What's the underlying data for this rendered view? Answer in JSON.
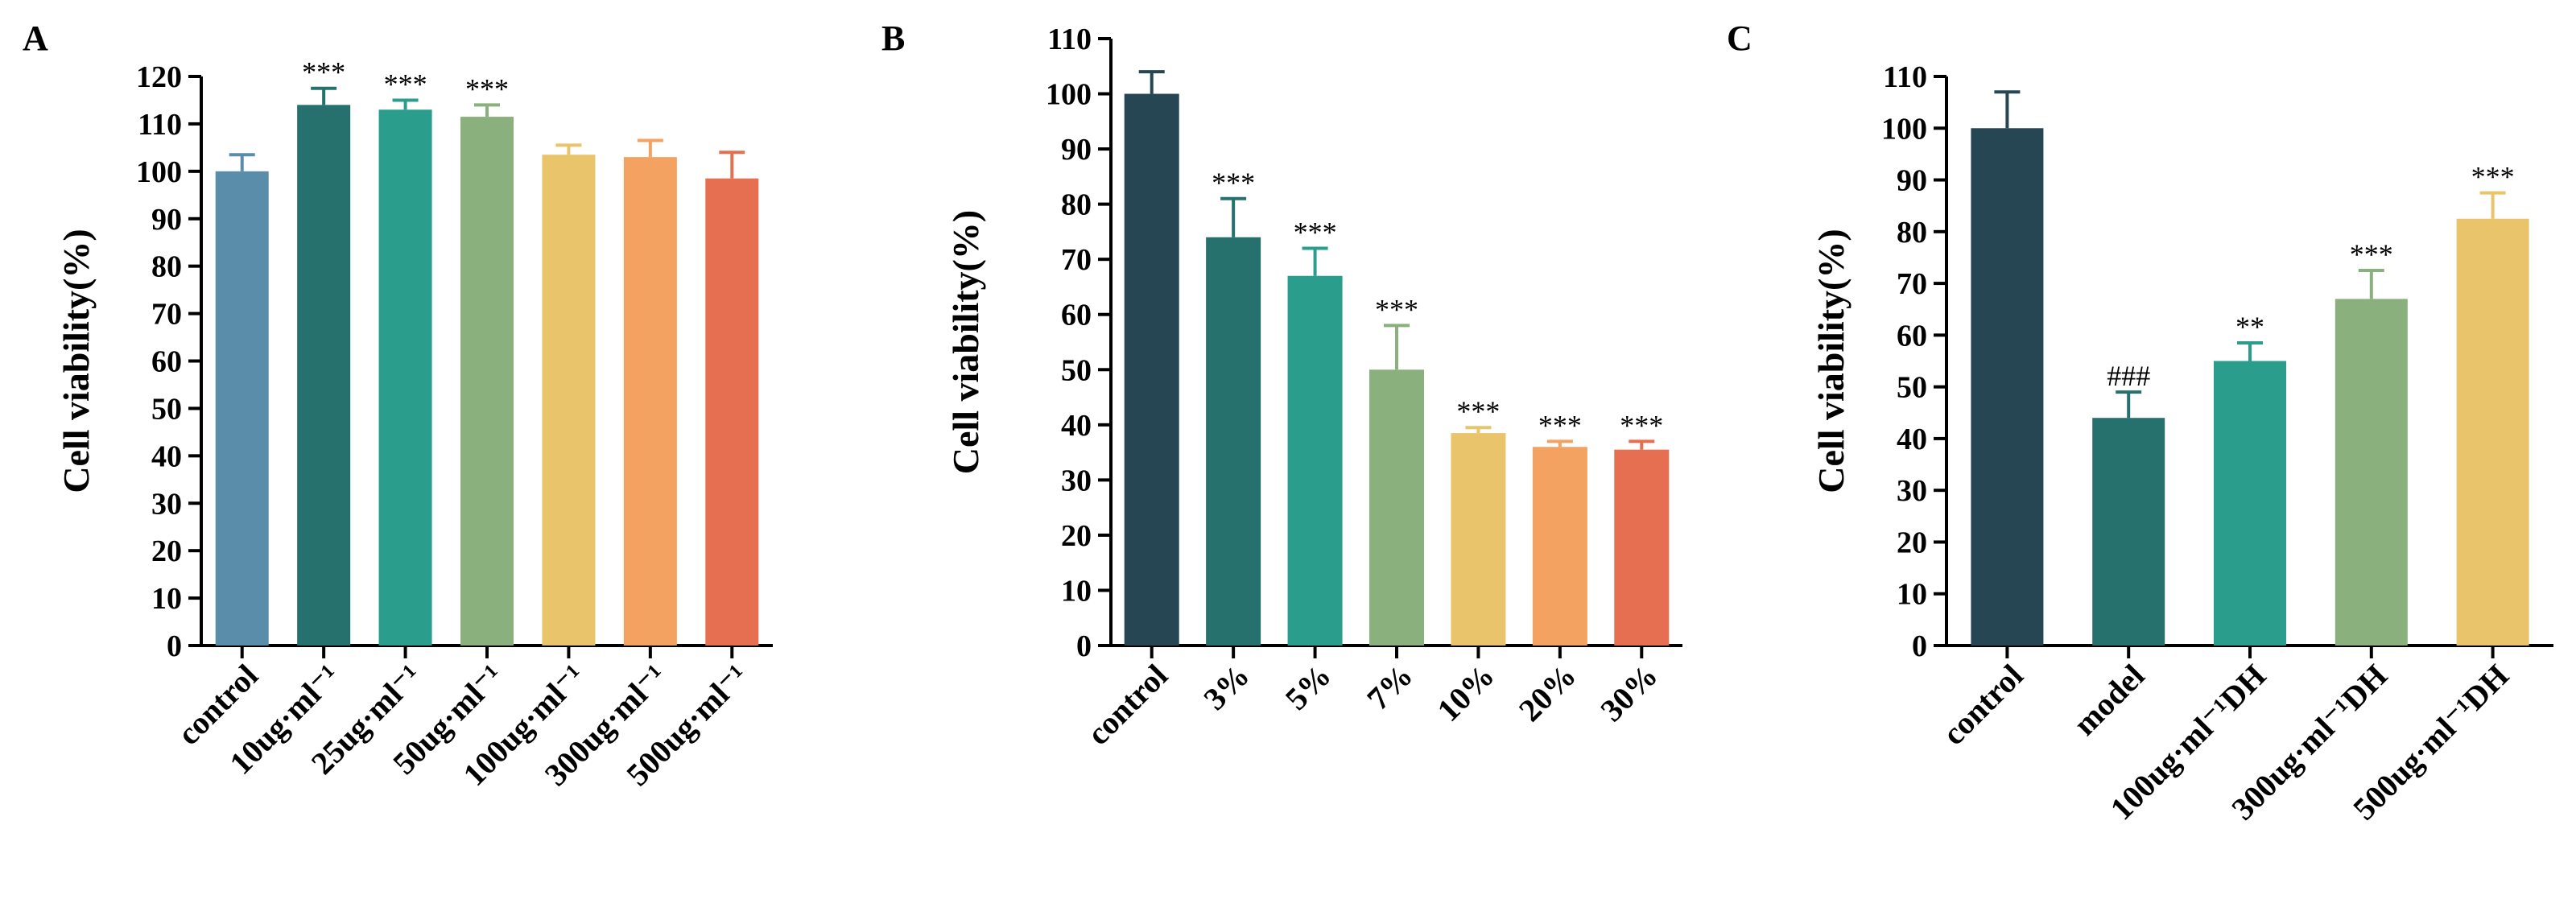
{
  "chart_data": [
    {
      "type": "bar",
      "panel": "A",
      "ylabel": "Cell viability(%)",
      "ylim": [
        0,
        120
      ],
      "yticks": [
        0,
        10,
        20,
        30,
        40,
        50,
        60,
        70,
        80,
        90,
        100,
        110,
        120
      ],
      "categories": [
        "control",
        "10ug·ml⁻¹",
        "25ug·ml⁻¹",
        "50ug·ml⁻¹",
        "100ug·ml⁻¹",
        "300ug·ml⁻¹",
        "500ug·ml⁻¹"
      ],
      "values": [
        100,
        114,
        113,
        111.5,
        103.5,
        103,
        98.5
      ],
      "errors": [
        3.5,
        3.5,
        2,
        2.5,
        2,
        3.5,
        5.5
      ],
      "annotations": [
        "",
        "***",
        "***",
        "***",
        "",
        "",
        ""
      ],
      "colors": [
        "#5a8da9",
        "#26716e",
        "#2a9d8c",
        "#8ab07d",
        "#e9c46b",
        "#f3a261",
        "#e76f51"
      ]
    },
    {
      "type": "bar",
      "panel": "B",
      "ylabel": "Cell viability(%)",
      "ylim": [
        0,
        110
      ],
      "yticks": [
        0,
        10,
        20,
        30,
        40,
        50,
        60,
        70,
        80,
        90,
        100,
        110
      ],
      "categories": [
        "control",
        "3%",
        "5%",
        "7%",
        "10%",
        "20%",
        "30%"
      ],
      "values": [
        100,
        74,
        67,
        50,
        38.5,
        36,
        35.5
      ],
      "errors": [
        4,
        7,
        5,
        8,
        1,
        1,
        1.5
      ],
      "annotations": [
        "",
        "***",
        "***",
        "***",
        "***",
        "***",
        "***"
      ],
      "colors": [
        "#264653",
        "#26716e",
        "#2a9d8c",
        "#8ab07d",
        "#e9c46b",
        "#f3a261",
        "#e76f51"
      ]
    },
    {
      "type": "bar",
      "panel": "C",
      "ylabel": "Cell viability(%)",
      "ylim": [
        0,
        110
      ],
      "yticks": [
        0,
        10,
        20,
        30,
        40,
        50,
        60,
        70,
        80,
        90,
        100,
        110
      ],
      "categories": [
        "control",
        "model",
        "100ug·ml⁻¹DH",
        "300ug·ml⁻¹DH",
        "500ug·ml⁻¹DH"
      ],
      "values": [
        100,
        44,
        55,
        67,
        82.5
      ],
      "errors": [
        7,
        5,
        3.5,
        5.5,
        5
      ],
      "annotations": [
        "",
        "###",
        "**",
        "***",
        "***"
      ],
      "colors": [
        "#264653",
        "#26716e",
        "#2a9d8c",
        "#8ab07d",
        "#e9c46b"
      ]
    }
  ]
}
